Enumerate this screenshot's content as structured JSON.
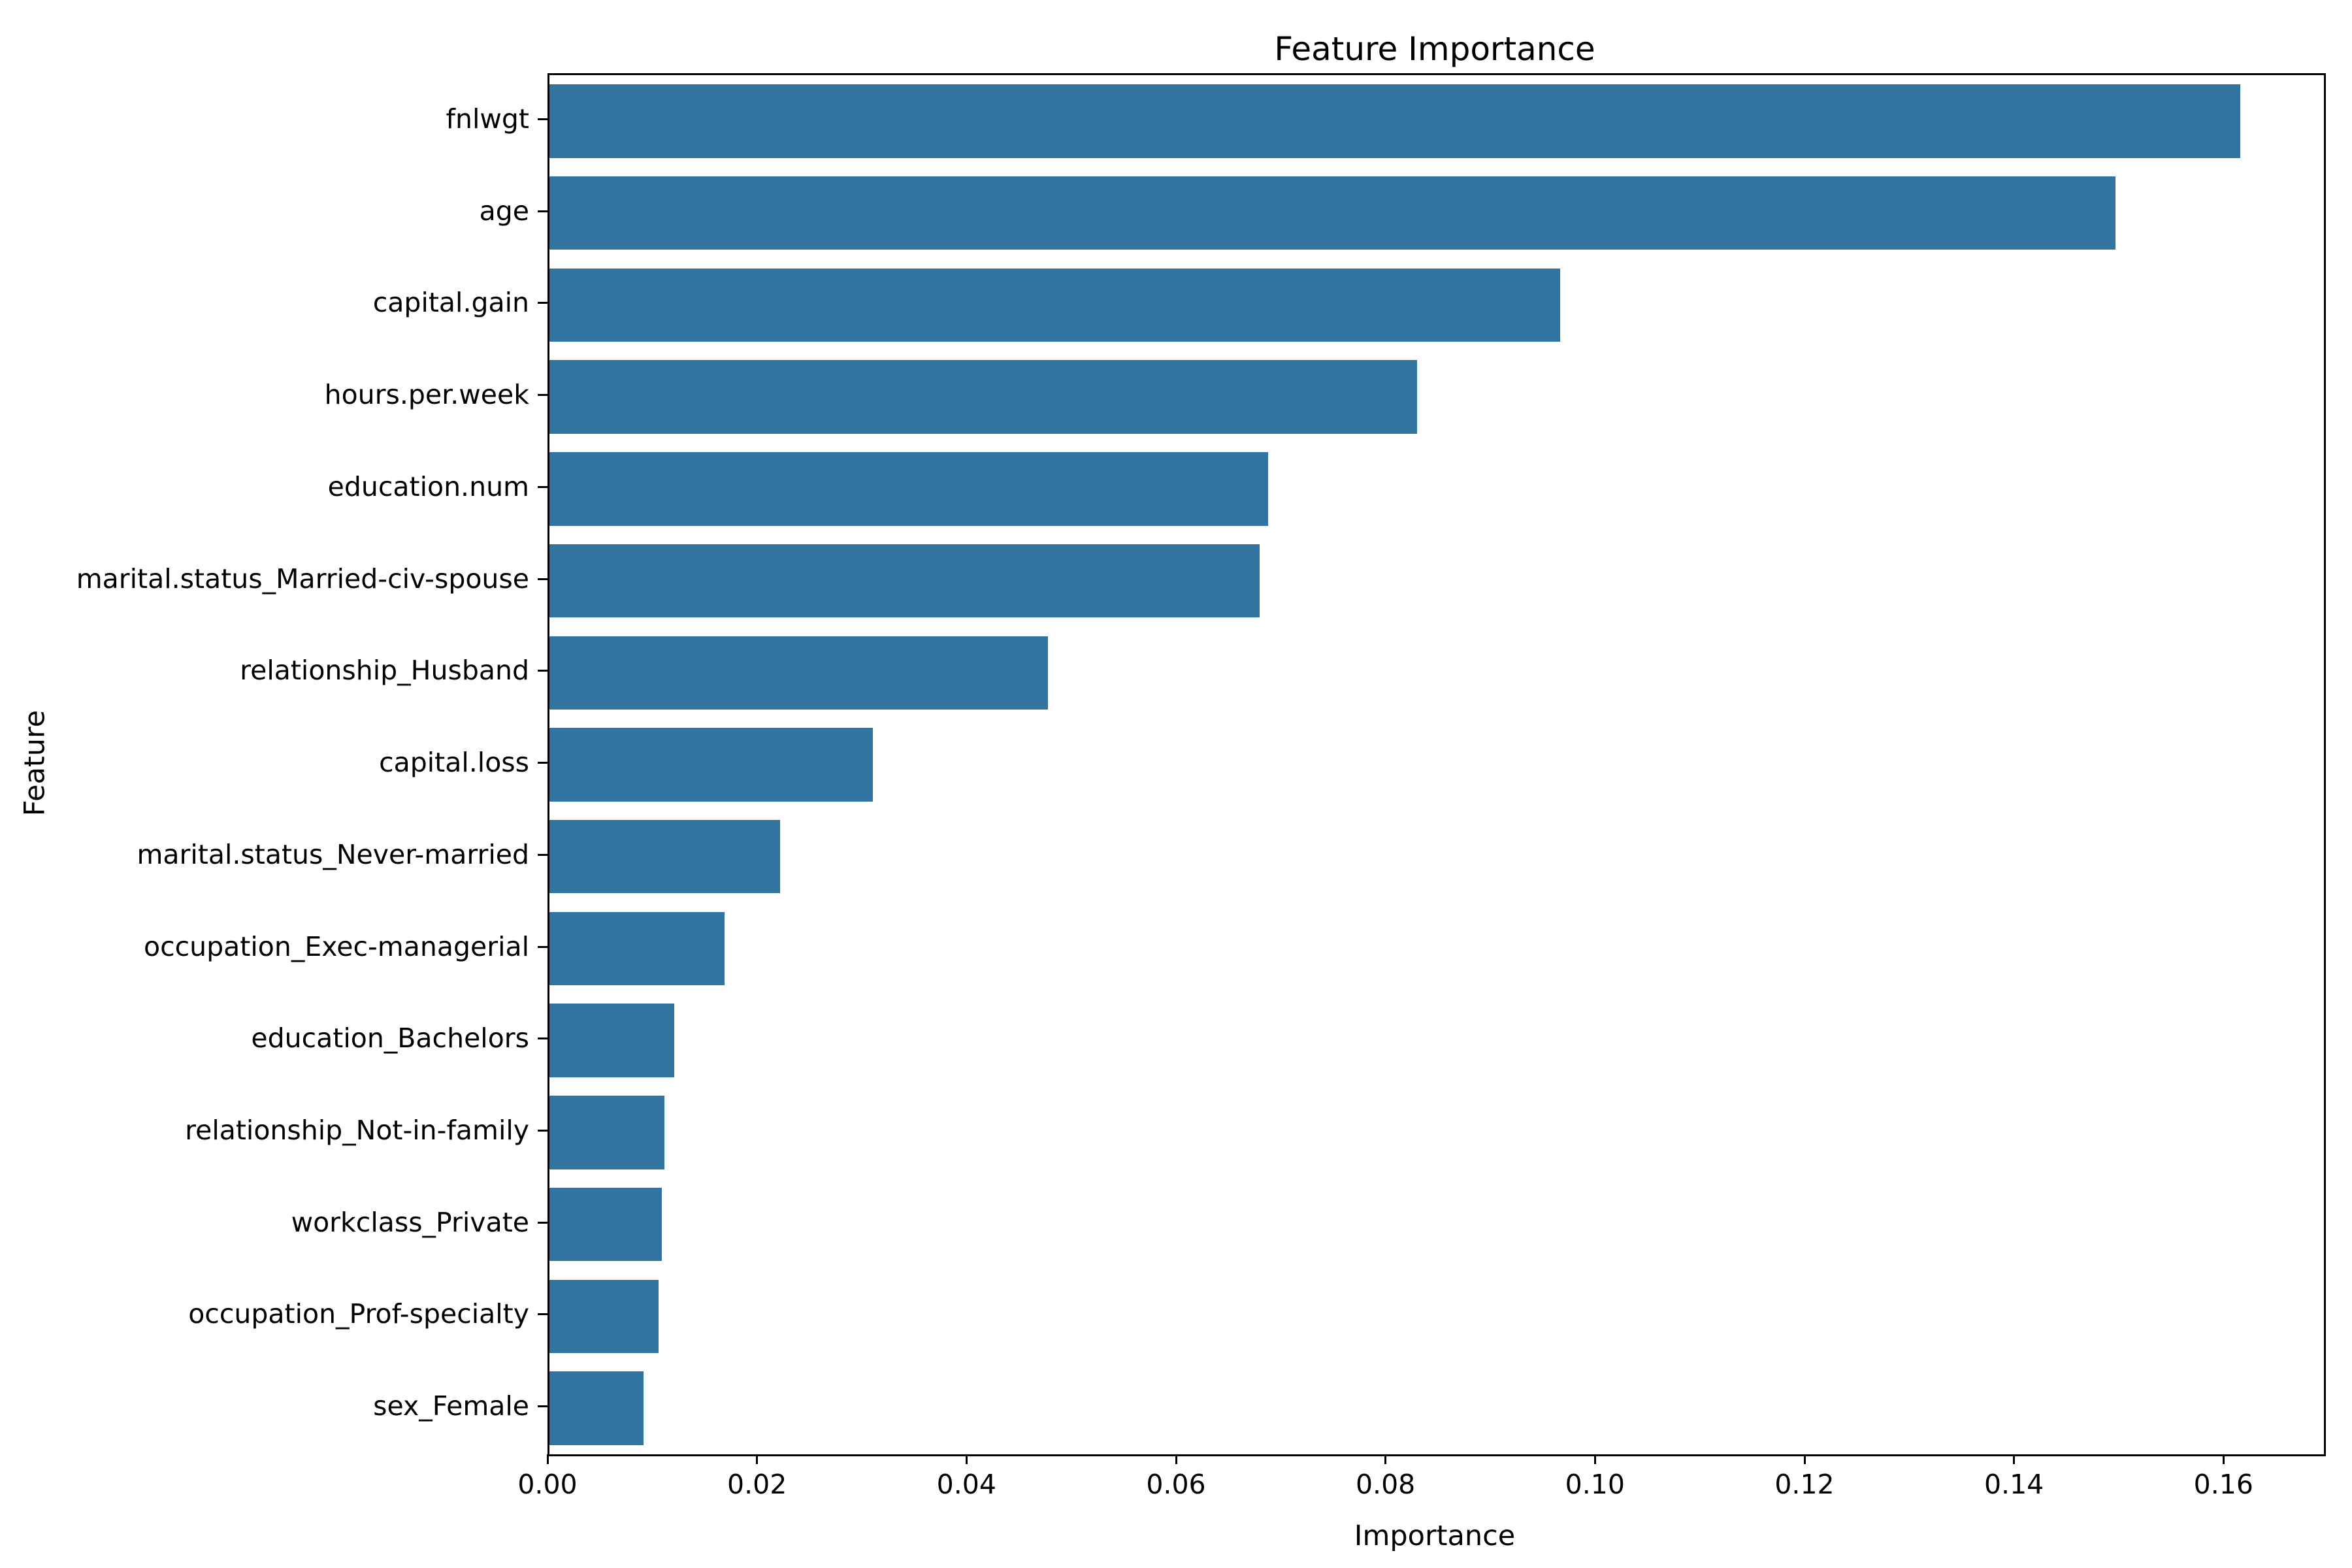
{
  "chart_data": {
    "type": "bar",
    "orientation": "horizontal",
    "title": "Feature Importance",
    "xlabel": "Importance",
    "ylabel": "Feature",
    "xlim": [
      0,
      0.1694
    ],
    "grid": false,
    "legend": null,
    "bar_color": "#3274a1",
    "categories": [
      "fnlwgt",
      "age",
      "capital.gain",
      "hours.per.week",
      "education.num",
      "marital.status_Married-civ-spouse",
      "relationship_Husband",
      "capital.loss",
      "marital.status_Never-married",
      "occupation_Exec-managerial",
      "education_Bachelors",
      "relationship_Not-in-family",
      "workclass_Private",
      "occupation_Prof-specialty",
      "sex_Female"
    ],
    "values": [
      0.1614,
      0.1495,
      0.0965,
      0.0828,
      0.0686,
      0.0678,
      0.0476,
      0.0309,
      0.022,
      0.0167,
      0.0119,
      0.011,
      0.0107,
      0.0104,
      0.009
    ],
    "xticks": {
      "values": [
        0.0,
        0.02,
        0.04,
        0.06,
        0.08,
        0.1,
        0.12,
        0.14,
        0.16
      ],
      "labels": [
        "0.00",
        "0.02",
        "0.04",
        "0.06",
        "0.08",
        "0.10",
        "0.12",
        "0.14",
        "0.16"
      ]
    }
  }
}
